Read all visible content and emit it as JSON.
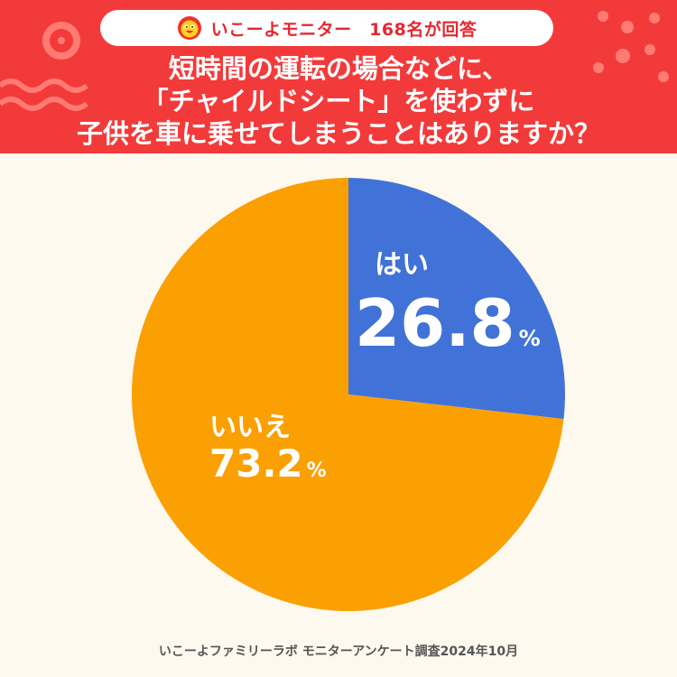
{
  "badge": {
    "text": "いこーよモニター　168名が回答",
    "mascot_icon": "mascot-face-icon"
  },
  "question": {
    "lines": [
      "短時間の運転の場合などに、",
      "「チャイルドシート」を使わずに",
      "子供を車に乗せてしまうことはありますか？"
    ]
  },
  "footer": {
    "text": "いこーよファミリーラボ モニターアンケート調査2024年10月"
  },
  "colors": {
    "header": "#f33a3a",
    "background": "#fdf9ee",
    "yes": "#4172d8",
    "no": "#fba003"
  },
  "chart_data": {
    "type": "pie",
    "title": "",
    "unit": "%",
    "start": "top, clockwise",
    "slices": [
      {
        "label": "はい",
        "value": 26.8,
        "value_text": "26.8",
        "color": "#4172d8"
      },
      {
        "label": "いいえ",
        "value": 73.2,
        "value_text": "73.2",
        "color": "#fba003"
      }
    ]
  }
}
